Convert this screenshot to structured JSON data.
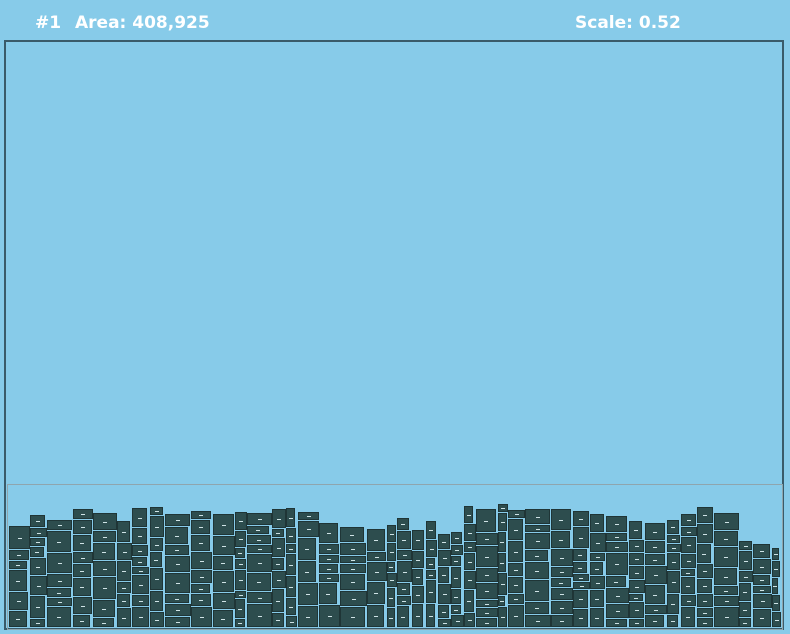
{
  "hud": {
    "run": "#1",
    "area": "Area: 408,925",
    "scale": "Scale: 0.52"
  },
  "colors": {
    "background": "#87cbe9",
    "piece_fill": "#2d4d4e",
    "board_border": "#3a5b6a"
  }
}
